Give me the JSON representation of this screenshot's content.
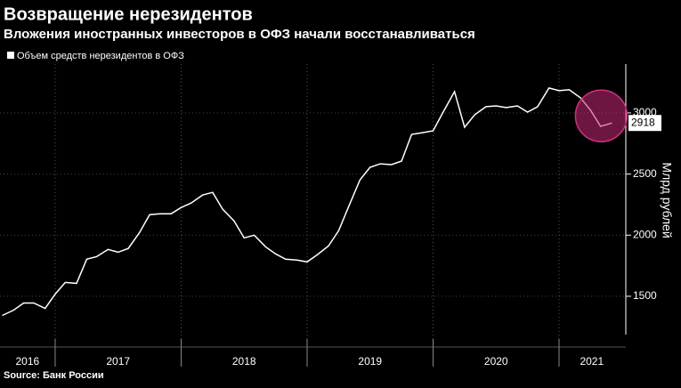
{
  "chart_data": {
    "type": "line",
    "title": "Возвращение нерезидентов",
    "subtitle": "Вложения иностранных инвесторов в ОФЗ начали восстанавливаться",
    "y_axis_label": "Млрд рублей",
    "source": "Source: Банк России",
    "x": [
      2016.58,
      2016.67,
      2016.75,
      2016.83,
      2016.92,
      2017.0,
      2017.08,
      2017.17,
      2017.25,
      2017.33,
      2017.42,
      2017.5,
      2017.58,
      2017.67,
      2017.75,
      2017.83,
      2017.92,
      2018.0,
      2018.08,
      2018.17,
      2018.25,
      2018.33,
      2018.42,
      2018.5,
      2018.58,
      2018.67,
      2018.75,
      2018.83,
      2018.92,
      2019.0,
      2019.08,
      2019.17,
      2019.25,
      2019.33,
      2019.42,
      2019.5,
      2019.58,
      2019.67,
      2019.75,
      2019.83,
      2019.92,
      2020.0,
      2020.08,
      2020.17,
      2020.25,
      2020.33,
      2020.42,
      2020.5,
      2020.58,
      2020.67,
      2020.75,
      2020.83,
      2020.92,
      2021.0,
      2021.08,
      2021.17,
      2021.25,
      2021.33,
      2021.42
    ],
    "series": [
      {
        "name": "Объем средств нерезидентов в ОФЗ",
        "color": "#ffffff",
        "values": [
          1343,
          1387,
          1445,
          1445,
          1401,
          1518,
          1613,
          1606,
          1803,
          1825,
          1883,
          1861,
          1891,
          2022,
          2168,
          2175,
          2175,
          2226,
          2263,
          2328,
          2350,
          2212,
          2117,
          1978,
          2000,
          1905,
          1847,
          1803,
          1796,
          1781,
          1839,
          1912,
          2036,
          2234,
          2453,
          2555,
          2584,
          2577,
          2606,
          2825,
          2839,
          2854,
          3007,
          3175,
          2883,
          2985,
          3051,
          3058,
          3044,
          3058,
          3007,
          3051,
          3204,
          3182,
          3190,
          3124,
          3022,
          2890,
          2918
        ]
      }
    ],
    "xlim": [
      2016.562,
      2021.53
    ],
    "xticks": [
      {
        "value": 2016.78,
        "label": "2016"
      },
      {
        "value": 2017.5,
        "label": "2017"
      },
      {
        "value": 2018.5,
        "label": "2018"
      },
      {
        "value": 2019.5,
        "label": "2019"
      },
      {
        "value": 2020.5,
        "label": "2020"
      },
      {
        "value": 2021.26,
        "label": "2021"
      }
    ],
    "year_boundaries": [
      2017,
      2018,
      2019,
      2020,
      2021
    ],
    "ylim": [
      1150,
      3400
    ],
    "yticks": [
      1500,
      2000,
      2500,
      3000
    ],
    "grid": true
  }
}
